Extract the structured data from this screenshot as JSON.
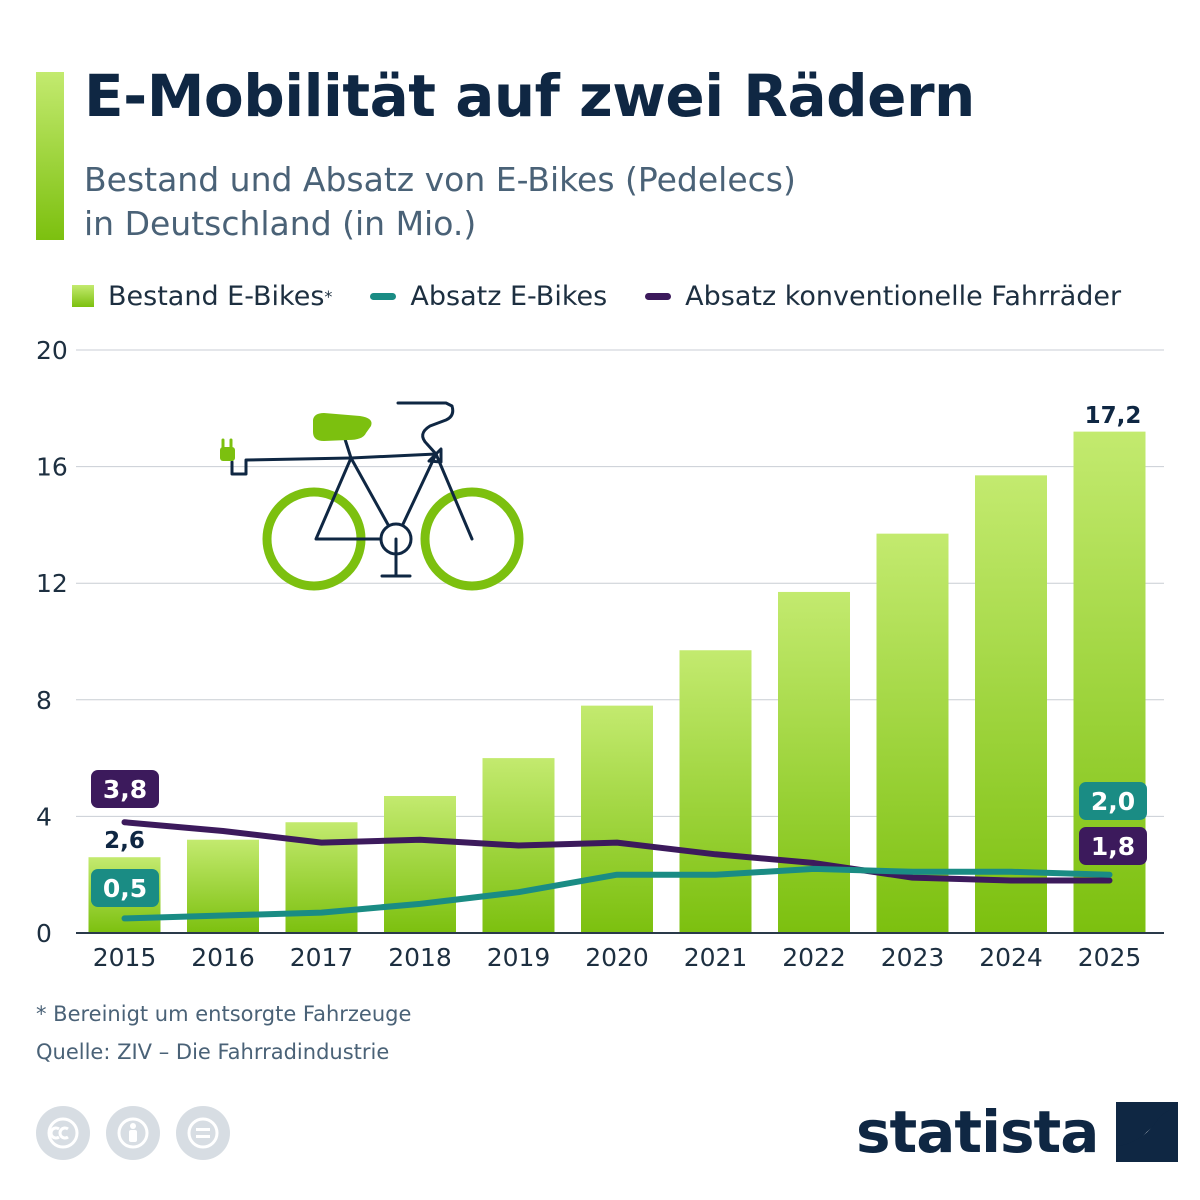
{
  "header": {
    "title": "E-Mobilität auf zwei Rädern",
    "subtitle_line1": "Bestand und Absatz von E-Bikes (Pedelecs)",
    "subtitle_line2": "in Deutschland (in Mio.)"
  },
  "chart_data": {
    "type": "bar",
    "title": "E-Mobilität auf zwei Rädern",
    "subtitle": "Bestand und Absatz von E-Bikes (Pedelecs) in Deutschland (in Mio.)",
    "categories": [
      "2015",
      "2016",
      "2017",
      "2018",
      "2019",
      "2020",
      "2021",
      "2022",
      "2023",
      "2024",
      "2025"
    ],
    "ylim": [
      0,
      20
    ],
    "yticks": [
      0,
      4,
      8,
      12,
      16,
      20
    ],
    "grid": true,
    "legend_position": "top-left",
    "series": [
      {
        "name": "Bestand E-Bikes*",
        "type": "bar",
        "color": "#8cc928",
        "values": [
          2.6,
          3.2,
          3.8,
          4.7,
          6.0,
          7.8,
          9.7,
          11.7,
          13.7,
          15.7,
          17.2
        ]
      },
      {
        "name": "Absatz E-Bikes",
        "type": "line",
        "color": "#1a8c84",
        "values": [
          0.5,
          0.6,
          0.7,
          1.0,
          1.4,
          2.0,
          2.0,
          2.2,
          2.1,
          2.1,
          2.0
        ]
      },
      {
        "name": "Absatz konventionelle Fahrräder",
        "type": "line",
        "color": "#3c1a5c",
        "values": [
          3.8,
          3.5,
          3.1,
          3.2,
          3.0,
          3.1,
          2.7,
          2.4,
          1.9,
          1.8,
          1.8
        ]
      }
    ],
    "annotations": [
      {
        "series": 0,
        "index": 0,
        "label": "2,6"
      },
      {
        "series": 0,
        "index": 10,
        "label": "17,2"
      },
      {
        "series": 1,
        "index": 0,
        "label": "0,5"
      },
      {
        "series": 1,
        "index": 10,
        "label": "2,0"
      },
      {
        "series": 2,
        "index": 0,
        "label": "3,8"
      },
      {
        "series": 2,
        "index": 10,
        "label": "1,8"
      }
    ]
  },
  "legend": {
    "bar_label": "Bestand E-Bikes",
    "bar_marker": "*",
    "line1_label": "Absatz E-Bikes",
    "line2_label": "Absatz konventionelle Fahrräder"
  },
  "footer": {
    "footnote": "* Bereinigt um entsorgte Fahrzeuge",
    "source": "Quelle: ZIV – Die Fahrradindustrie",
    "logo_text": "statista"
  },
  "icons": [
    "e-bike-icon",
    "cc-icon",
    "attribution-icon",
    "no-derivatives-icon",
    "statista-logo-icon"
  ],
  "colors": {
    "bar_top": "#c3ea6f",
    "bar_bottom": "#7cc00f",
    "ebike_line": "#1a8c84",
    "conventional_line": "#3c1a5c",
    "title": "#0f2743"
  }
}
